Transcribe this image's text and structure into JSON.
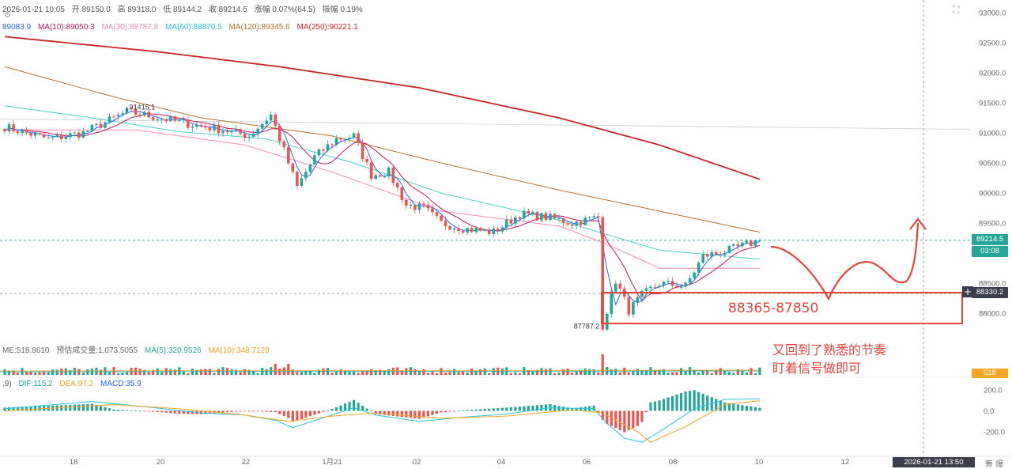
{
  "header": {
    "datetime": "2026-01-21 10:05",
    "open": "开 89150.0",
    "high": "高 89318.0",
    "low": "低 89144.2",
    "close": "收 89214.5",
    "change": "涨幅 0.07%(64.5)",
    "amplitude": "振幅 0.19%"
  },
  "ma_legend": [
    {
      "label": "89083.9",
      "color": "#2962ff"
    },
    {
      "label": "MA(10):89050.3",
      "color": "#c2185b"
    },
    {
      "label": "MA(30):88787.8",
      "color": "#f48fb1"
    },
    {
      "label": "MA(60):88870.5",
      "color": "#26c6da"
    },
    {
      "label": "MA(120):89345.6",
      "color": "#b87333"
    },
    {
      "label": "MA(250):90221.1",
      "color": "#c62828"
    }
  ],
  "volume_legend": [
    {
      "label": "ME:518.8610",
      "color": "#666666"
    },
    {
      "label": "预估成交量:1,073.5055",
      "color": "#666666"
    },
    {
      "label": "MA(5):320.9526",
      "color": "#26a69a"
    },
    {
      "label": "MA(10):348.7129",
      "color": "#f5a623"
    }
  ],
  "macd_legend": [
    {
      "label": ",9)",
      "color": "#666666"
    },
    {
      "label": "DIF:115.2",
      "color": "#26a69a"
    },
    {
      "label": "DEA:97.2",
      "color": "#f5a623"
    },
    {
      "label": "MACD:35.9",
      "color": "#2962ff"
    }
  ],
  "price_tags": {
    "current": "89214.5",
    "countdown": "03:08",
    "crosshair": "88330.2",
    "volume": "518"
  },
  "annotations": {
    "range": "88365-87850",
    "line1": "又回到了熟悉的节奏",
    "line2": "盯着信号做即可"
  },
  "bottom": {
    "crosshair_time": "2026-01-21 13:50",
    "corner": "筹 爆"
  },
  "chart_data": {
    "type": "candlestick",
    "y_axis": {
      "ticks": [
        "93000.0",
        "92500.0",
        "92000.0",
        "91500.0",
        "91000.0",
        "90500.0",
        "90000.0",
        "89500.0",
        "89000.0",
        "88500.0",
        "88000.0"
      ],
      "ylim": [
        87700,
        93100
      ]
    },
    "x_axis": {
      "ticks": [
        "18",
        "20",
        "22",
        "1月21",
        "02",
        "04",
        "06",
        "08",
        "10",
        "12"
      ]
    },
    "marked_high": {
      "label": "91415.1",
      "value": 91415.1
    },
    "marked_low": {
      "label": "87787.2",
      "value": 87787.2
    },
    "current_price": 89214.5,
    "crosshair_price": 88330.2,
    "ma_anchors": {
      "MA250": [
        [
          0,
          92600
        ],
        [
          35,
          92350
        ],
        [
          63,
          92100
        ],
        [
          95,
          91750
        ],
        [
          127,
          91250
        ],
        [
          150,
          90800
        ],
        [
          173,
          90230
        ]
      ],
      "MA120": [
        [
          0,
          92100
        ],
        [
          25,
          91600
        ],
        [
          45,
          91250
        ],
        [
          75,
          90950
        ],
        [
          100,
          90500
        ],
        [
          127,
          90050
        ],
        [
          150,
          89700
        ],
        [
          173,
          89350
        ]
      ],
      "MA60": [
        [
          0,
          91450
        ],
        [
          20,
          91250
        ],
        [
          40,
          91020
        ],
        [
          60,
          90900
        ],
        [
          80,
          90500
        ],
        [
          100,
          90000
        ],
        [
          127,
          89550
        ],
        [
          150,
          89050
        ],
        [
          173,
          88900
        ]
      ],
      "MA30": [
        [
          0,
          91050
        ],
        [
          30,
          91050
        ],
        [
          55,
          90800
        ],
        [
          75,
          90350
        ],
        [
          100,
          89700
        ],
        [
          127,
          89450
        ],
        [
          138,
          89150
        ],
        [
          150,
          88750
        ],
        [
          173,
          88750
        ]
      ]
    },
    "price_path": [
      [
        0,
        91100
      ],
      [
        10,
        90900
      ],
      [
        18,
        91000
      ],
      [
        28,
        91350
      ],
      [
        32,
        91300
      ],
      [
        42,
        91150
      ],
      [
        50,
        91050
      ],
      [
        56,
        90950
      ],
      [
        61,
        91300
      ],
      [
        65,
        90500
      ],
      [
        67,
        90100
      ],
      [
        71,
        90600
      ],
      [
        76,
        90900
      ],
      [
        80,
        90950
      ],
      [
        84,
        90300
      ],
      [
        88,
        90350
      ],
      [
        92,
        89800
      ],
      [
        96,
        89750
      ],
      [
        100,
        89500
      ],
      [
        106,
        89400
      ],
      [
        112,
        89350
      ],
      [
        118,
        89650
      ],
      [
        124,
        89600
      ],
      [
        130,
        89500
      ],
      [
        136,
        89600
      ],
      [
        137,
        87800
      ],
      [
        140,
        88550
      ],
      [
        143,
        88050
      ],
      [
        146,
        88300
      ],
      [
        150,
        88500
      ],
      [
        156,
        88450
      ],
      [
        160,
        88950
      ],
      [
        166,
        89050
      ],
      [
        173,
        89214.5
      ]
    ],
    "macd": {
      "ticks": [
        "200.0",
        "0.0",
        "-200.0"
      ],
      "ylim": [
        -300,
        250
      ],
      "dif_path": [
        [
          0,
          20
        ],
        [
          20,
          90
        ],
        [
          32,
          40
        ],
        [
          45,
          -20
        ],
        [
          55,
          -40
        ],
        [
          62,
          -90
        ],
        [
          66,
          -160
        ],
        [
          72,
          -80
        ],
        [
          80,
          30
        ],
        [
          85,
          -40
        ],
        [
          95,
          -100
        ],
        [
          105,
          -60
        ],
        [
          115,
          -30
        ],
        [
          125,
          30
        ],
        [
          135,
          20
        ],
        [
          138,
          -120
        ],
        [
          142,
          -260
        ],
        [
          146,
          -300
        ],
        [
          150,
          -200
        ],
        [
          158,
          20
        ],
        [
          165,
          110
        ],
        [
          173,
          115.2
        ]
      ],
      "dea_path": [
        [
          0,
          0
        ],
        [
          25,
          60
        ],
        [
          40,
          20
        ],
        [
          55,
          -40
        ],
        [
          65,
          -100
        ],
        [
          75,
          -50
        ],
        [
          85,
          -20
        ],
        [
          100,
          -70
        ],
        [
          115,
          -50
        ],
        [
          130,
          10
        ],
        [
          137,
          -20
        ],
        [
          145,
          -200
        ],
        [
          148,
          -300
        ],
        [
          156,
          -150
        ],
        [
          165,
          60
        ],
        [
          173,
          97.2
        ]
      ]
    }
  }
}
